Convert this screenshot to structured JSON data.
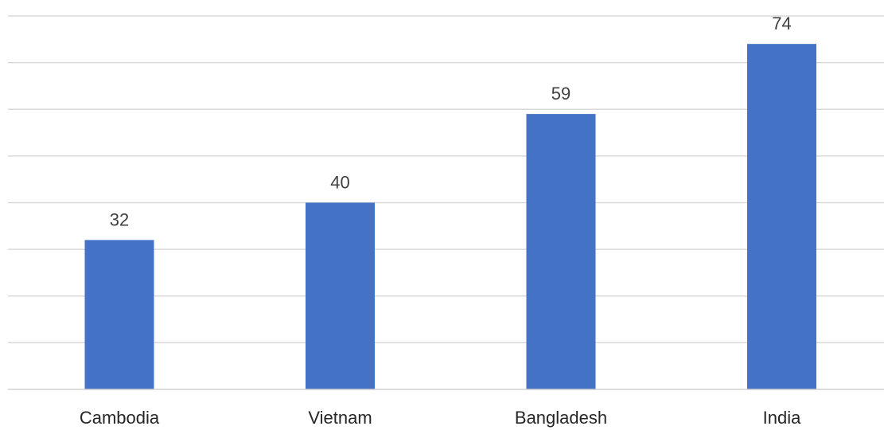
{
  "chart_data": {
    "type": "bar",
    "categories": [
      "Cambodia",
      "Vietnam",
      "Bangladesh",
      "India"
    ],
    "values": [
      32,
      40,
      59,
      74
    ],
    "ylim": [
      0,
      80
    ],
    "grid": true,
    "bar_color": "#4472c4",
    "gridline_color": "#d9d9d9"
  }
}
